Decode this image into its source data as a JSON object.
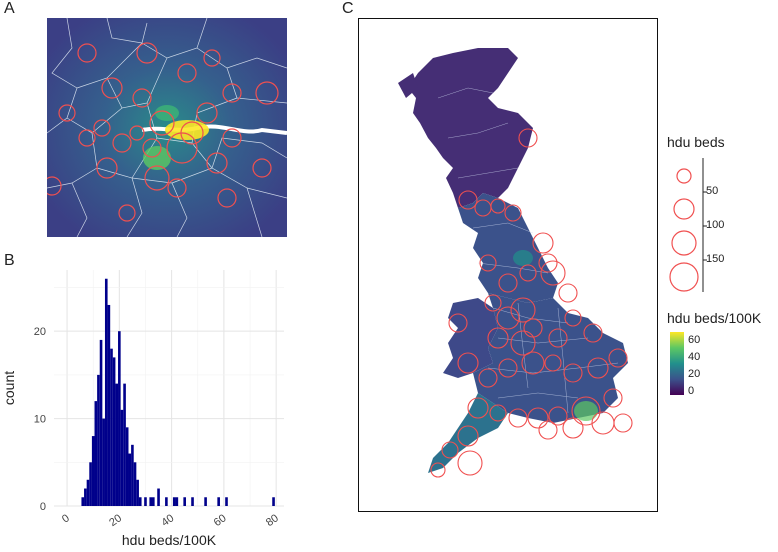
{
  "panels": {
    "a": "A",
    "b": "B",
    "c": "C"
  },
  "colors": {
    "bar": "#00008b",
    "circle": "#f05050",
    "viridis": [
      "#440154",
      "#3b528b",
      "#21908c",
      "#5dc863",
      "#fde725"
    ],
    "map_base": "#3c4f8c"
  },
  "legend": {
    "size_title": "hdu beds",
    "size_labels": [
      "50",
      "100",
      "150"
    ],
    "color_title": "hdu beds/100K",
    "color_labels": [
      "60",
      "40",
      "20",
      "0"
    ]
  },
  "chart_data": [
    {
      "type": "bar",
      "panel": "B",
      "xlabel": "hdu beds/100K",
      "ylabel": "count",
      "xlim": [
        -5,
        83
      ],
      "ylim": [
        0,
        27
      ],
      "xticks": [
        "0",
        "20",
        "40",
        "60",
        "80"
      ],
      "yticks": [
        "0",
        "10",
        "20"
      ],
      "grid": true,
      "bins": [
        {
          "x": 6,
          "count": 1
        },
        {
          "x": 7,
          "count": 2
        },
        {
          "x": 8,
          "count": 3
        },
        {
          "x": 9,
          "count": 5
        },
        {
          "x": 10,
          "count": 8
        },
        {
          "x": 11,
          "count": 12
        },
        {
          "x": 12,
          "count": 15
        },
        {
          "x": 13,
          "count": 19
        },
        {
          "x": 14,
          "count": 10
        },
        {
          "x": 15,
          "count": 26
        },
        {
          "x": 16,
          "count": 23
        },
        {
          "x": 17,
          "count": 18
        },
        {
          "x": 18,
          "count": 17
        },
        {
          "x": 19,
          "count": 14
        },
        {
          "x": 20,
          "count": 20
        },
        {
          "x": 21,
          "count": 11
        },
        {
          "x": 22,
          "count": 14
        },
        {
          "x": 23,
          "count": 9
        },
        {
          "x": 24,
          "count": 6
        },
        {
          "x": 25,
          "count": 7
        },
        {
          "x": 26,
          "count": 5
        },
        {
          "x": 27,
          "count": 3
        },
        {
          "x": 28,
          "count": 1
        },
        {
          "x": 30,
          "count": 1
        },
        {
          "x": 32,
          "count": 1
        },
        {
          "x": 33,
          "count": 1
        },
        {
          "x": 35,
          "count": 2
        },
        {
          "x": 38,
          "count": 1
        },
        {
          "x": 41,
          "count": 1
        },
        {
          "x": 42,
          "count": 1
        },
        {
          "x": 45,
          "count": 1
        },
        {
          "x": 48,
          "count": 1
        },
        {
          "x": 53,
          "count": 1
        },
        {
          "x": 58,
          "count": 1
        },
        {
          "x": 61,
          "count": 1
        },
        {
          "x": 79,
          "count": 1
        }
      ]
    },
    {
      "type": "map",
      "panel": "A",
      "size_var": "hdu beds",
      "color_var": "hdu beds/100K"
    },
    {
      "type": "map",
      "panel": "C",
      "size_var": "hdu beds",
      "color_var": "hdu beds/100K",
      "legend_position": "right"
    }
  ]
}
